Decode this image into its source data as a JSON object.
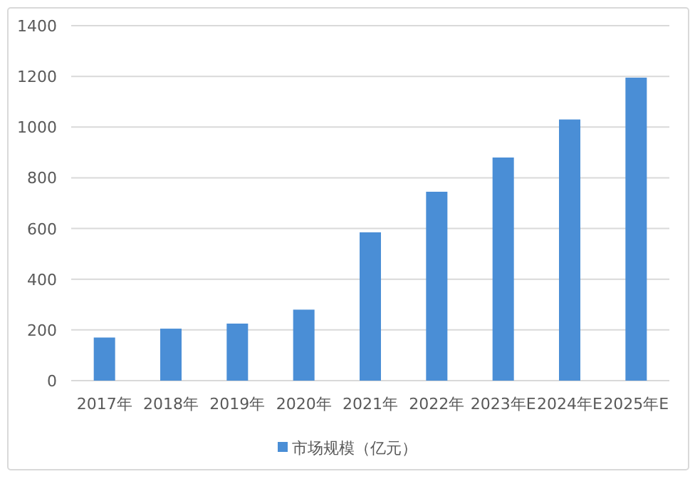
{
  "chart_data": {
    "type": "bar",
    "categories": [
      "2017年",
      "2018年",
      "2019年",
      "2020年",
      "2021年",
      "2022年",
      "2023年E",
      "2024年E",
      "2025年E"
    ],
    "series": [
      {
        "name": "市场规模（亿元）",
        "color": "#4a8ed6",
        "values": [
          170,
          205,
          225,
          280,
          585,
          745,
          880,
          1030,
          1195
        ]
      }
    ],
    "ylim": [
      0,
      1400
    ],
    "yticks": [
      0,
      200,
      400,
      600,
      800,
      1000,
      1200,
      1400
    ],
    "grid": "y",
    "legend": "bottom"
  }
}
